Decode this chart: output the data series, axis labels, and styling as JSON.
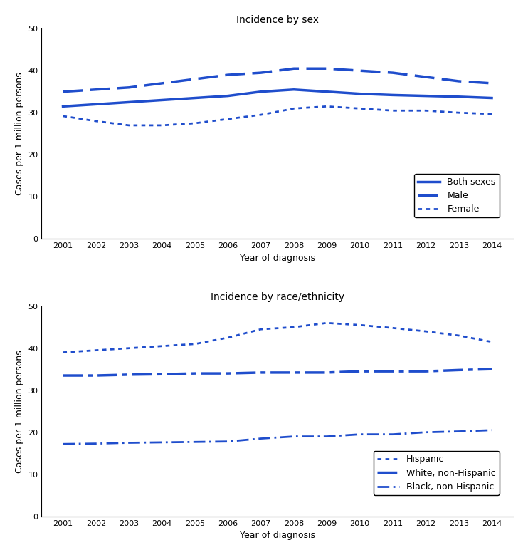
{
  "years": [
    2001,
    2002,
    2003,
    2004,
    2005,
    2006,
    2007,
    2008,
    2009,
    2010,
    2011,
    2012,
    2013,
    2014
  ],
  "sex": {
    "both_sexes": [
      31.5,
      32.0,
      32.5,
      33.0,
      33.5,
      34.0,
      35.0,
      35.5,
      35.0,
      34.5,
      34.2,
      34.0,
      33.8,
      33.5
    ],
    "male": [
      35.0,
      35.5,
      36.0,
      37.0,
      38.0,
      39.0,
      39.5,
      40.5,
      40.5,
      40.0,
      39.5,
      38.5,
      37.5,
      37.0
    ],
    "female": [
      29.2,
      28.0,
      27.0,
      27.0,
      27.5,
      28.5,
      29.5,
      31.0,
      31.5,
      31.0,
      30.5,
      30.5,
      30.0,
      29.7
    ]
  },
  "race": {
    "hispanic": [
      39.0,
      39.5,
      40.0,
      40.5,
      41.0,
      42.5,
      44.5,
      45.0,
      46.0,
      45.5,
      44.8,
      44.0,
      43.0,
      41.5
    ],
    "white_nonhisp": [
      33.5,
      33.5,
      33.7,
      33.8,
      34.0,
      34.0,
      34.2,
      34.2,
      34.2,
      34.5,
      34.5,
      34.5,
      34.8,
      35.0
    ],
    "black_nonhisp": [
      17.2,
      17.3,
      17.5,
      17.6,
      17.7,
      17.8,
      18.5,
      19.0,
      19.0,
      19.5,
      19.5,
      20.0,
      20.2,
      20.5
    ]
  },
  "sex_title": "Incidence by sex",
  "race_title": "Incidence by race/ethnicity",
  "ylabel": "Cases per 1 million persons",
  "xlabel": "Year of diagnosis",
  "color": "#1f4dcc",
  "ylim": [
    0,
    50
  ],
  "yticks": [
    0,
    10,
    20,
    30,
    40,
    50
  ],
  "legend_sex": [
    "Both sexes",
    "Male",
    "Female"
  ],
  "legend_race": [
    "Hispanic",
    "White, non-Hispanic",
    "Black, non-Hispanic"
  ]
}
